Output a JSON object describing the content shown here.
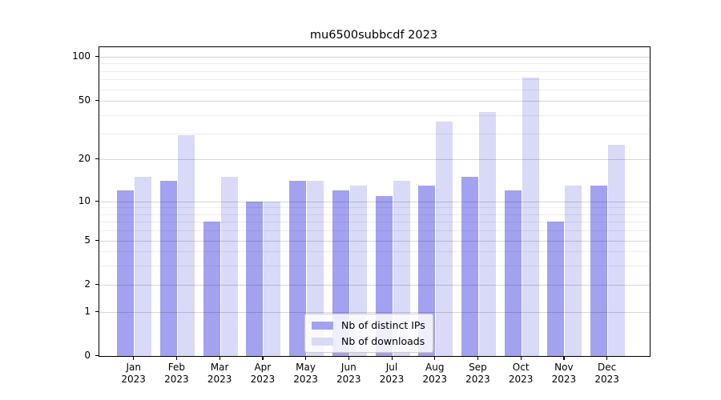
{
  "title": "mu6500subbcdf 2023",
  "legend": {
    "entries": [
      {
        "label": "Nb of distinct IPs",
        "color": "#a2a2f0"
      },
      {
        "label": "Nb of downloads",
        "color": "#d9d9f8"
      }
    ]
  },
  "y_axis": {
    "tick_values": [
      0,
      1,
      2,
      5,
      10,
      20,
      50,
      100
    ],
    "tick_labels": [
      "0",
      "1",
      "2",
      "5",
      "10",
      "20",
      "50",
      "100"
    ]
  },
  "x_axis": {
    "months": [
      "Jan",
      "Feb",
      "Mar",
      "Apr",
      "May",
      "Jun",
      "Jul",
      "Aug",
      "Sep",
      "Oct",
      "Nov",
      "Dec"
    ],
    "year": "2023"
  },
  "chart_data": {
    "type": "bar",
    "title": "mu6500subbcdf 2023",
    "categories": [
      "Jan 2023",
      "Feb 2023",
      "Mar 2023",
      "Apr 2023",
      "May 2023",
      "Jun 2023",
      "Jul 2023",
      "Aug 2023",
      "Sep 2023",
      "Oct 2023",
      "Nov 2023",
      "Dec 2023"
    ],
    "series": [
      {
        "name": "Nb of distinct IPs",
        "color": "#a2a2f0",
        "values": [
          12,
          14,
          7,
          10,
          14,
          12,
          11,
          13,
          15,
          12,
          7,
          13
        ]
      },
      {
        "name": "Nb of downloads",
        "color": "#d9d9f8",
        "values": [
          15,
          29,
          15,
          10,
          14,
          13,
          14,
          36,
          42,
          72,
          13,
          25
        ]
      }
    ],
    "yscale": "symlog",
    "ylim": [
      0,
      110
    ],
    "yticks": [
      0,
      1,
      2,
      5,
      10,
      20,
      50,
      100
    ],
    "minor_yticks": [
      3,
      4,
      6,
      7,
      8,
      9,
      30,
      40,
      60,
      70,
      80,
      90
    ],
    "grid": true,
    "legend_position": "lower center"
  }
}
